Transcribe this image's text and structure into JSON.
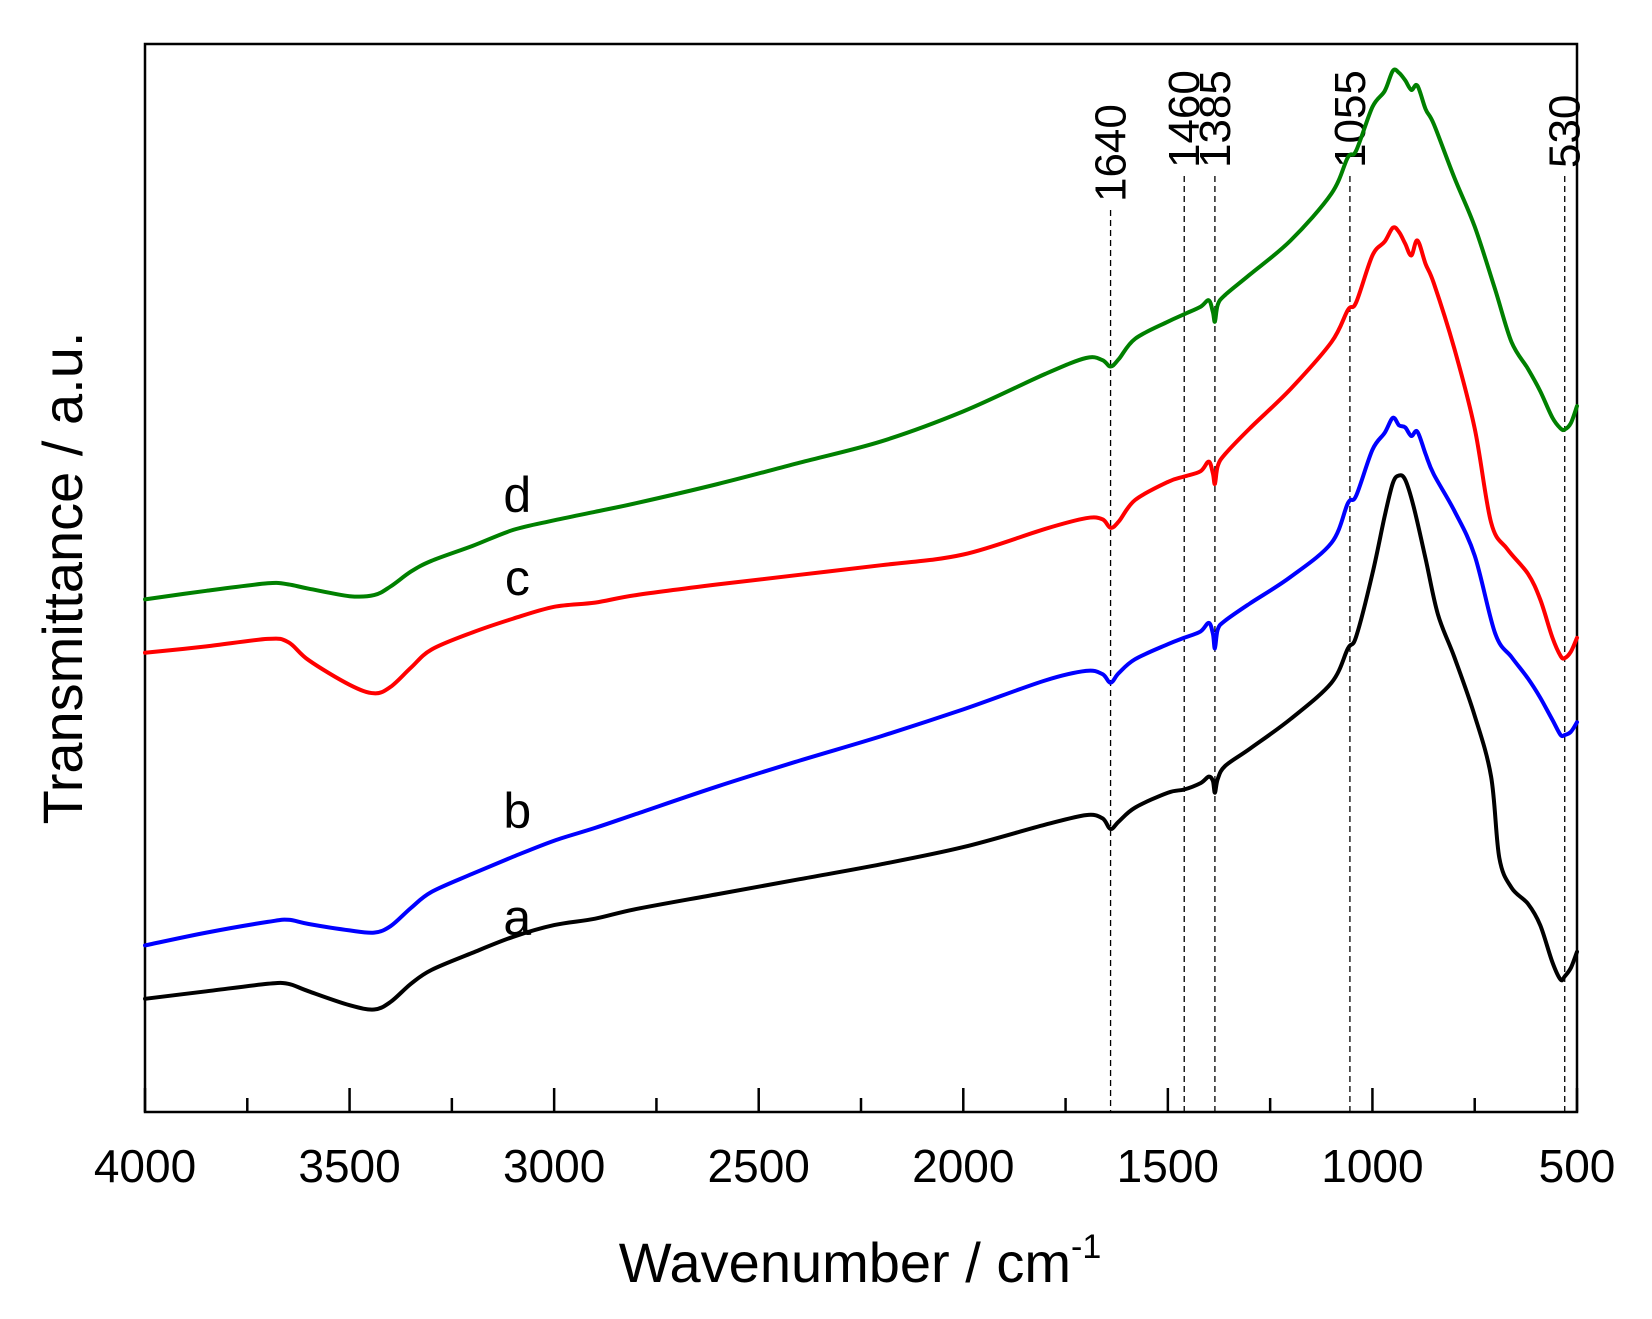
{
  "chart_data": {
    "type": "line",
    "title": "",
    "xlabel": "Wavenumber / cm",
    "xlabel_superscript": "-1",
    "ylabel": "Transmittance / a.u.",
    "xlim": [
      4000,
      500
    ],
    "ylim": [
      0,
      100
    ],
    "x_reversed": true,
    "x_ticks": [
      4000,
      3500,
      3000,
      2500,
      2000,
      1500,
      1000,
      500
    ],
    "x_minor_step": 250,
    "y_ticks_shown": false,
    "grid": false,
    "reference_lines": [
      {
        "x": 1640,
        "label": "1640"
      },
      {
        "x": 1460,
        "label": "1460"
      },
      {
        "x": 1385,
        "label": "1385"
      },
      {
        "x": 1055,
        "label": "1055"
      },
      {
        "x": 530,
        "label": "530"
      }
    ],
    "series": [
      {
        "name": "a",
        "color": "#000000",
        "label_at": [
          3090,
          16.6
        ],
        "points": [
          [
            4000,
            10.6
          ],
          [
            3850,
            11.3
          ],
          [
            3700,
            12.0
          ],
          [
            3650,
            12.0
          ],
          [
            3600,
            11.3
          ],
          [
            3500,
            10.0
          ],
          [
            3440,
            9.6
          ],
          [
            3400,
            10.3
          ],
          [
            3350,
            12.0
          ],
          [
            3300,
            13.3
          ],
          [
            3200,
            14.9
          ],
          [
            3100,
            16.4
          ],
          [
            3000,
            17.5
          ],
          [
            2900,
            18.1
          ],
          [
            2800,
            19.0
          ],
          [
            2600,
            20.4
          ],
          [
            2400,
            21.8
          ],
          [
            2200,
            23.2
          ],
          [
            2000,
            24.8
          ],
          [
            1800,
            26.9
          ],
          [
            1700,
            27.8
          ],
          [
            1660,
            27.5
          ],
          [
            1640,
            26.5
          ],
          [
            1620,
            27.2
          ],
          [
            1580,
            28.5
          ],
          [
            1500,
            29.9
          ],
          [
            1460,
            30.2
          ],
          [
            1420,
            30.8
          ],
          [
            1400,
            31.4
          ],
          [
            1390,
            31.0
          ],
          [
            1385,
            29.9
          ],
          [
            1378,
            31.2
          ],
          [
            1360,
            32.4
          ],
          [
            1300,
            34.0
          ],
          [
            1200,
            36.8
          ],
          [
            1100,
            40.2
          ],
          [
            1060,
            43.4
          ],
          [
            1040,
            44.5
          ],
          [
            1000,
            50.4
          ],
          [
            970,
            55.8
          ],
          [
            950,
            58.9
          ],
          [
            935,
            59.6
          ],
          [
            920,
            59.2
          ],
          [
            900,
            56.8
          ],
          [
            870,
            51.8
          ],
          [
            840,
            46.6
          ],
          [
            800,
            42.6
          ],
          [
            750,
            37.1
          ],
          [
            710,
            31.4
          ],
          [
            690,
            23.8
          ],
          [
            660,
            21.0
          ],
          [
            620,
            19.5
          ],
          [
            590,
            17.5
          ],
          [
            560,
            14.0
          ],
          [
            540,
            12.4
          ],
          [
            530,
            12.7
          ],
          [
            515,
            13.5
          ],
          [
            500,
            15.0
          ]
        ]
      },
      {
        "name": "b",
        "color": "#0000ff",
        "label_at": [
          3090,
          26.6
        ],
        "points": [
          [
            4000,
            15.6
          ],
          [
            3850,
            16.8
          ],
          [
            3700,
            17.8
          ],
          [
            3650,
            18.0
          ],
          [
            3600,
            17.6
          ],
          [
            3500,
            17.0
          ],
          [
            3440,
            16.8
          ],
          [
            3400,
            17.4
          ],
          [
            3350,
            19.1
          ],
          [
            3300,
            20.6
          ],
          [
            3200,
            22.3
          ],
          [
            3100,
            23.9
          ],
          [
            3000,
            25.4
          ],
          [
            2900,
            26.6
          ],
          [
            2800,
            27.9
          ],
          [
            2600,
            30.5
          ],
          [
            2400,
            32.9
          ],
          [
            2200,
            35.2
          ],
          [
            2000,
            37.7
          ],
          [
            1800,
            40.4
          ],
          [
            1700,
            41.3
          ],
          [
            1660,
            41.0
          ],
          [
            1640,
            40.2
          ],
          [
            1620,
            41.1
          ],
          [
            1580,
            42.4
          ],
          [
            1500,
            43.8
          ],
          [
            1460,
            44.4
          ],
          [
            1420,
            45.0
          ],
          [
            1400,
            45.8
          ],
          [
            1390,
            44.8
          ],
          [
            1385,
            43.4
          ],
          [
            1378,
            45.2
          ],
          [
            1360,
            46.0
          ],
          [
            1300,
            47.6
          ],
          [
            1200,
            50.1
          ],
          [
            1100,
            53.3
          ],
          [
            1060,
            57.0
          ],
          [
            1040,
            57.7
          ],
          [
            1000,
            62.0
          ],
          [
            970,
            63.6
          ],
          [
            950,
            65.0
          ],
          [
            935,
            64.3
          ],
          [
            920,
            64.1
          ],
          [
            905,
            63.3
          ],
          [
            890,
            63.7
          ],
          [
            870,
            61.6
          ],
          [
            850,
            59.7
          ],
          [
            800,
            56.3
          ],
          [
            750,
            52.1
          ],
          [
            700,
            44.8
          ],
          [
            660,
            42.6
          ],
          [
            620,
            40.6
          ],
          [
            590,
            38.8
          ],
          [
            560,
            36.7
          ],
          [
            540,
            35.3
          ],
          [
            530,
            35.3
          ],
          [
            515,
            35.6
          ],
          [
            500,
            36.5
          ]
        ]
      },
      {
        "name": "c",
        "color": "#ff0000",
        "label_at": [
          3090,
          48.4
        ],
        "points": [
          [
            4000,
            43.0
          ],
          [
            3850,
            43.6
          ],
          [
            3700,
            44.3
          ],
          [
            3650,
            44.0
          ],
          [
            3600,
            42.3
          ],
          [
            3500,
            40.0
          ],
          [
            3440,
            39.2
          ],
          [
            3400,
            39.8
          ],
          [
            3350,
            41.6
          ],
          [
            3300,
            43.3
          ],
          [
            3200,
            44.9
          ],
          [
            3100,
            46.2
          ],
          [
            3000,
            47.3
          ],
          [
            2900,
            47.7
          ],
          [
            2800,
            48.4
          ],
          [
            2600,
            49.4
          ],
          [
            2400,
            50.3
          ],
          [
            2200,
            51.2
          ],
          [
            2000,
            52.2
          ],
          [
            1800,
            54.6
          ],
          [
            1700,
            55.6
          ],
          [
            1660,
            55.5
          ],
          [
            1640,
            54.7
          ],
          [
            1620,
            55.3
          ],
          [
            1580,
            57.3
          ],
          [
            1500,
            59.0
          ],
          [
            1460,
            59.5
          ],
          [
            1420,
            60.0
          ],
          [
            1400,
            60.9
          ],
          [
            1390,
            59.8
          ],
          [
            1385,
            58.8
          ],
          [
            1378,
            60.5
          ],
          [
            1360,
            61.6
          ],
          [
            1300,
            64.0
          ],
          [
            1200,
            67.7
          ],
          [
            1100,
            72.1
          ],
          [
            1060,
            75.1
          ],
          [
            1040,
            75.8
          ],
          [
            1000,
            80.2
          ],
          [
            970,
            81.5
          ],
          [
            950,
            82.8
          ],
          [
            935,
            82.4
          ],
          [
            920,
            81.3
          ],
          [
            905,
            80.2
          ],
          [
            890,
            81.6
          ],
          [
            870,
            79.4
          ],
          [
            850,
            77.6
          ],
          [
            800,
            71.5
          ],
          [
            750,
            64.0
          ],
          [
            710,
            55.2
          ],
          [
            670,
            52.7
          ],
          [
            620,
            50.4
          ],
          [
            590,
            48.0
          ],
          [
            560,
            44.4
          ],
          [
            540,
            42.7
          ],
          [
            530,
            42.5
          ],
          [
            515,
            43.1
          ],
          [
            500,
            44.4
          ]
        ]
      },
      {
        "name": "d",
        "color": "#008000",
        "label_at": [
          3090,
          56.2
        ],
        "points": [
          [
            4000,
            48.0
          ],
          [
            3850,
            48.8
          ],
          [
            3700,
            49.5
          ],
          [
            3650,
            49.4
          ],
          [
            3600,
            49.0
          ],
          [
            3500,
            48.3
          ],
          [
            3440,
            48.4
          ],
          [
            3400,
            49.2
          ],
          [
            3350,
            50.6
          ],
          [
            3300,
            51.6
          ],
          [
            3200,
            53.0
          ],
          [
            3100,
            54.5
          ],
          [
            3000,
            55.4
          ],
          [
            2900,
            56.2
          ],
          [
            2800,
            57.0
          ],
          [
            2600,
            58.8
          ],
          [
            2400,
            60.8
          ],
          [
            2200,
            62.8
          ],
          [
            2000,
            65.6
          ],
          [
            1800,
            69.1
          ],
          [
            1700,
            70.6
          ],
          [
            1660,
            70.4
          ],
          [
            1640,
            69.8
          ],
          [
            1620,
            70.5
          ],
          [
            1580,
            72.4
          ],
          [
            1500,
            74.0
          ],
          [
            1460,
            74.7
          ],
          [
            1420,
            75.4
          ],
          [
            1400,
            76.0
          ],
          [
            1390,
            74.9
          ],
          [
            1385,
            74.0
          ],
          [
            1378,
            75.6
          ],
          [
            1360,
            76.5
          ],
          [
            1300,
            78.4
          ],
          [
            1200,
            81.6
          ],
          [
            1100,
            86.0
          ],
          [
            1060,
            89.4
          ],
          [
            1040,
            90.0
          ],
          [
            1000,
            94.1
          ],
          [
            970,
            95.6
          ],
          [
            950,
            97.5
          ],
          [
            935,
            97.3
          ],
          [
            920,
            96.6
          ],
          [
            905,
            95.7
          ],
          [
            890,
            96.1
          ],
          [
            870,
            93.9
          ],
          [
            850,
            92.5
          ],
          [
            800,
            87.5
          ],
          [
            750,
            82.9
          ],
          [
            700,
            77.0
          ],
          [
            660,
            72.1
          ],
          [
            620,
            69.6
          ],
          [
            590,
            67.5
          ],
          [
            560,
            65.0
          ],
          [
            540,
            64.0
          ],
          [
            530,
            63.9
          ],
          [
            515,
            64.5
          ],
          [
            500,
            66.1
          ]
        ]
      }
    ]
  }
}
